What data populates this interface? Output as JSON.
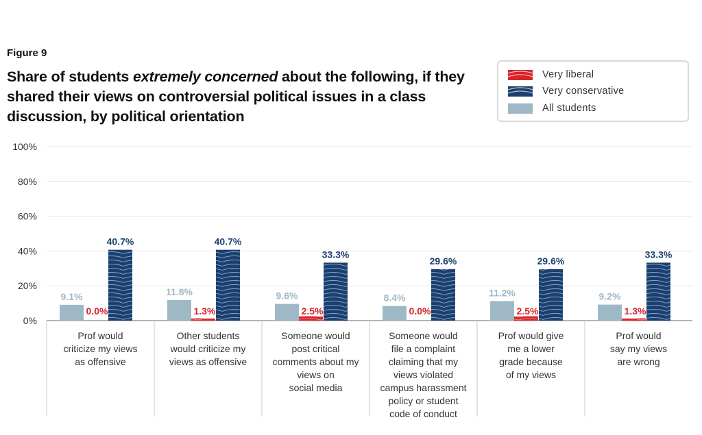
{
  "figure_label": "Figure 9",
  "title": {
    "before": "Share of students ",
    "emphasis": "extremely concerned",
    "after": " about the following, if they shared their views on controversial political issues in a class discussion, by political orientation"
  },
  "colors": {
    "liberal": "#d8232a",
    "conservative": "#1c3f6e",
    "all": "#9fb8c6"
  },
  "chart_data": {
    "type": "bar",
    "categories": [
      "Prof would criticize my views as offensive",
      "Other students would criticize my views as offensive",
      "Someone would post critical comments about my views on social media",
      "Someone would file a complaint claiming that my views violated campus harassment policy or student code of conduct",
      "Prof would give me a lower grade because of my views",
      "Prof would say my views are wrong"
    ],
    "category_lines": [
      [
        "Prof would",
        "criticize my views",
        "as offensive"
      ],
      [
        "Other students",
        "would criticize my",
        "views as offensive"
      ],
      [
        "Someone would",
        "post critical",
        "comments about my",
        "views on",
        "social media"
      ],
      [
        "Someone would",
        "file a complaint",
        "claiming that my",
        "views violated",
        "campus harassment",
        "policy or student",
        "code of conduct"
      ],
      [
        "Prof would give",
        "me a lower",
        "grade because",
        "of my views"
      ],
      [
        "Prof would",
        "say my views",
        "are wrong"
      ]
    ],
    "series": [
      {
        "name": "All students",
        "key": "all",
        "values": [
          9.1,
          11.8,
          9.6,
          8.4,
          11.2,
          9.2
        ],
        "labels": [
          "9.1%",
          "11.8%",
          "9.6%",
          "8.4%",
          "11.2%",
          "9.2%"
        ]
      },
      {
        "name": "Very liberal",
        "key": "liberal",
        "values": [
          0.0,
          1.3,
          2.5,
          0.0,
          2.5,
          1.3
        ],
        "labels": [
          "0.0%",
          "1.3%",
          "2.5%",
          "0.0%",
          "2.5%",
          "1.3%"
        ]
      },
      {
        "name": "Very conservative",
        "key": "conservative",
        "values": [
          40.7,
          40.7,
          33.3,
          29.6,
          29.6,
          33.3
        ],
        "labels": [
          "40.7%",
          "40.7%",
          "33.3%",
          "29.6%",
          "29.6%",
          "33.3%"
        ]
      }
    ],
    "legend_order": [
      "Very liberal",
      "Very conservative",
      "All students"
    ],
    "yticks": [
      "0%",
      "20%",
      "40%",
      "60%",
      "80%",
      "100%"
    ],
    "ylim": [
      0,
      100
    ],
    "grid": true,
    "legend_position": "top-right"
  }
}
